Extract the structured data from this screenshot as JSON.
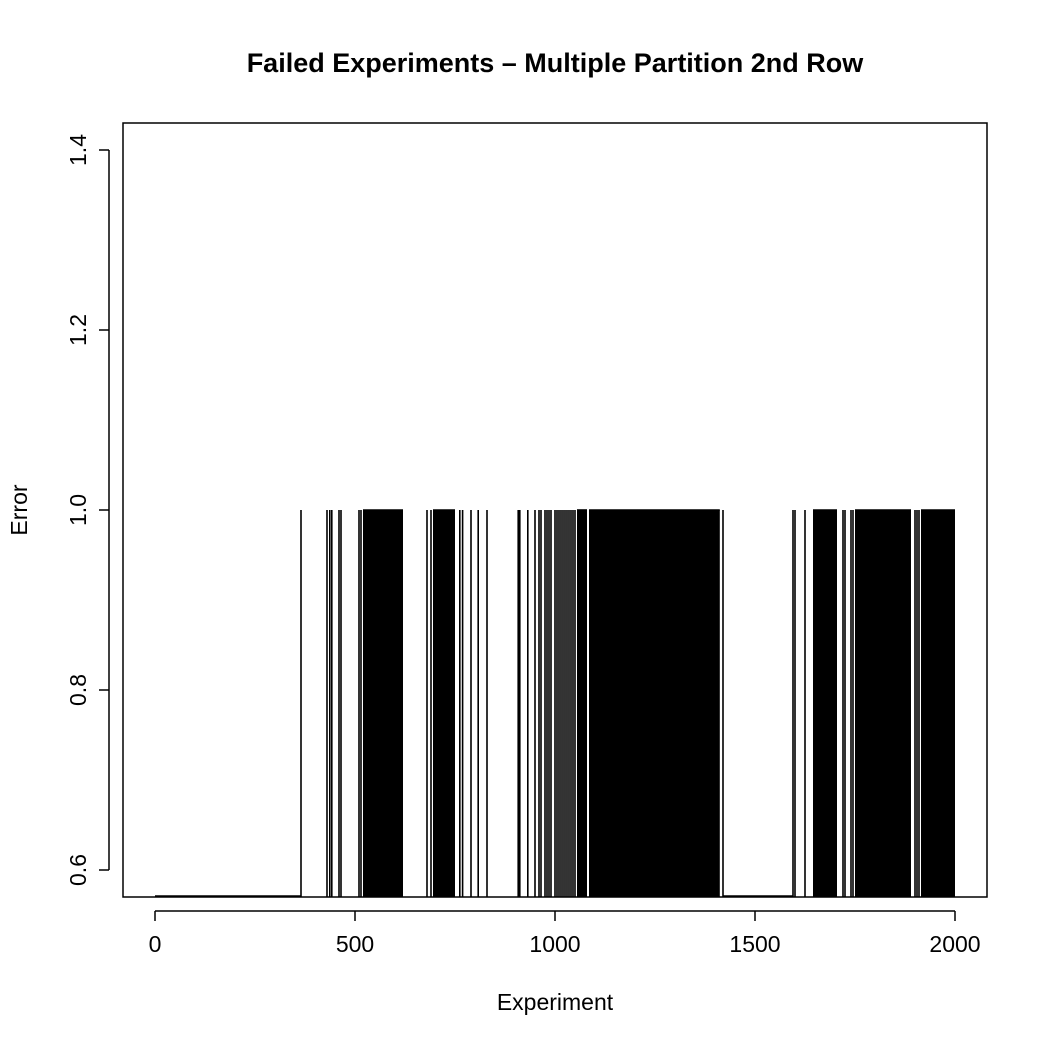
{
  "chart_data": {
    "type": "line",
    "title": "Failed Experiments – Multiple Partition 2nd Row",
    "xlabel": "Experiment",
    "ylabel": "Error",
    "xlim": [
      -80,
      2080
    ],
    "ylim": [
      0.57,
      1.43
    ],
    "xticks": [
      0,
      500,
      1000,
      1500,
      2000
    ],
    "yticks": [
      0.6,
      0.8,
      1.0,
      1.2,
      1.4
    ],
    "xtick_labels": [
      "0",
      "500",
      "1000",
      "1500",
      "2000"
    ],
    "ytick_labels": [
      "0.6",
      "0.8",
      "1.0",
      "1.2",
      "1.4"
    ],
    "grid": false,
    "legend": "none",
    "baseline_value": 0,
    "failure_value": 1,
    "failed_experiments": [
      365,
      430,
      437,
      442,
      460,
      465,
      510,
      515,
      680,
      690,
      762,
      769,
      790,
      808,
      830,
      908,
      912,
      932,
      950,
      960,
      965,
      975,
      980,
      985,
      990,
      1000,
      1005,
      1010,
      1015,
      1020,
      1025,
      1030,
      1035,
      1040,
      1045,
      1050,
      1420,
      1595,
      1600,
      1625,
      1720,
      1725,
      1740,
      1745,
      1900,
      1905,
      1910
    ],
    "failed_ranges": [
      [
        520,
        620
      ],
      [
        695,
        750
      ],
      [
        1055,
        1080
      ],
      [
        1085,
        1412
      ],
      [
        1645,
        1705
      ],
      [
        1750,
        1890
      ],
      [
        1915,
        2000
      ]
    ]
  }
}
